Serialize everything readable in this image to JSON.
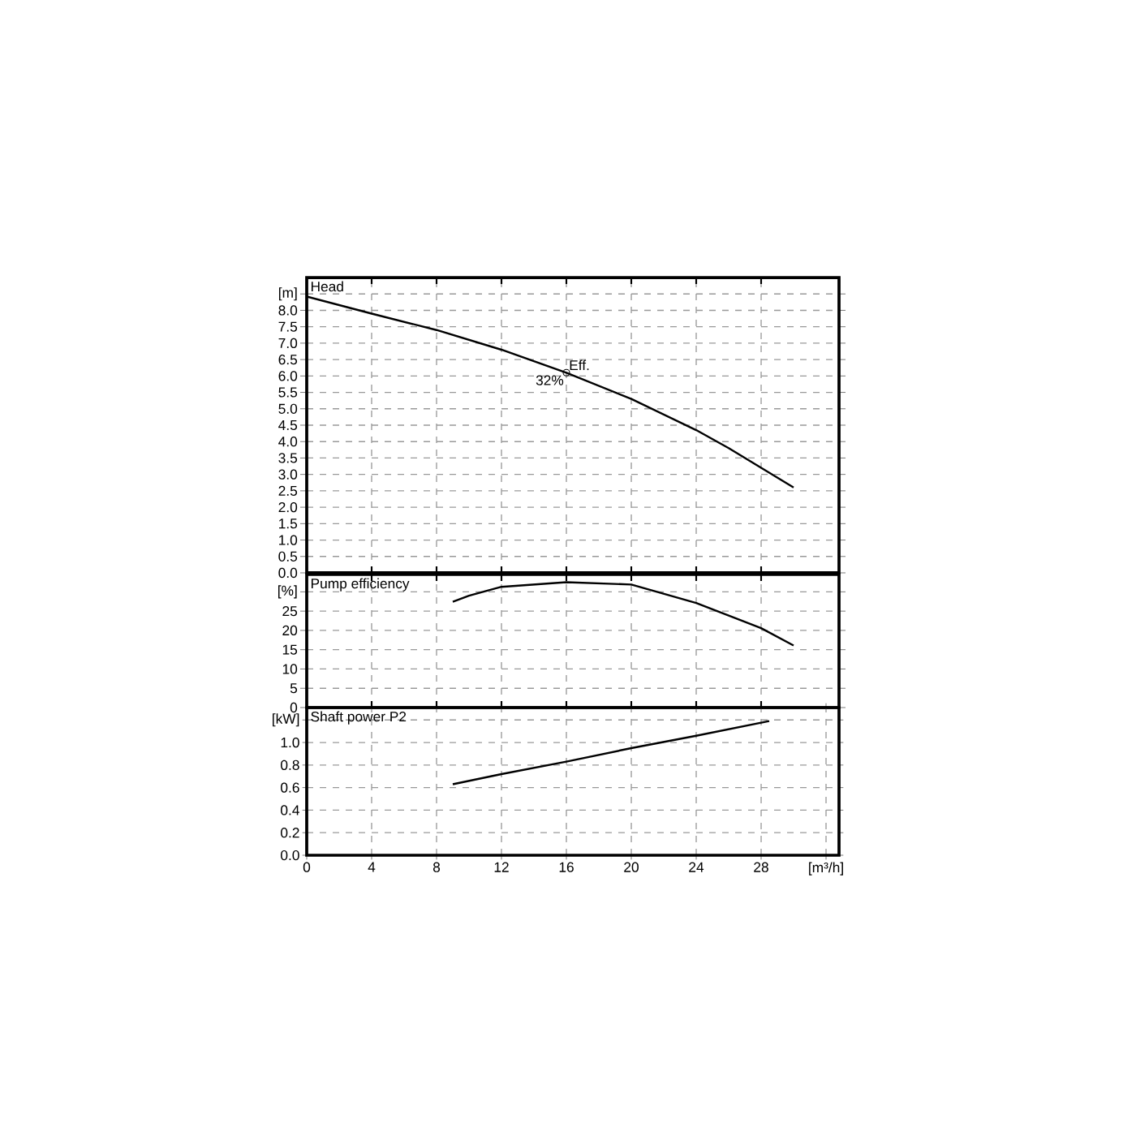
{
  "chart_data": [
    {
      "type": "line",
      "title": "Head",
      "xlim": [
        0,
        32.8
      ],
      "ylim": [
        0,
        9.0
      ],
      "grid": true,
      "tick_labels": "y",
      "xticks": [
        0,
        4,
        8,
        12,
        16,
        20,
        24,
        28
      ],
      "yticks": [
        {
          "value": 0,
          "label": "0.0"
        },
        {
          "value": 0.5,
          "label": "0.5"
        },
        {
          "value": 1,
          "label": "1.0"
        },
        {
          "value": 1.5,
          "label": "1.5"
        },
        {
          "value": 2,
          "label": "2.0"
        },
        {
          "value": 2.5,
          "label": "2.5"
        },
        {
          "value": 3,
          "label": "3.0"
        },
        {
          "value": 3.5,
          "label": "3.5"
        },
        {
          "value": 4,
          "label": "4.0"
        },
        {
          "value": 4.5,
          "label": "4.5"
        },
        {
          "value": 5,
          "label": "5.0"
        },
        {
          "value": 5.5,
          "label": "5.5"
        },
        {
          "value": 6,
          "label": "6.0"
        },
        {
          "value": 6.5,
          "label": "6.5"
        },
        {
          "value": 7,
          "label": "7.0"
        },
        {
          "value": 7.5,
          "label": "7.5"
        },
        {
          "value": 8,
          "label": "8.0"
        },
        {
          "value": 8.5,
          "label": "[m]"
        }
      ],
      "series": [
        {
          "color": "#000000",
          "x": [
            0,
            4,
            8,
            12,
            16,
            20,
            24,
            26,
            28,
            30
          ],
          "values": [
            8.42,
            7.9,
            7.4,
            6.8,
            6.1,
            5.3,
            4.35,
            3.8,
            3.2,
            2.6
          ]
        },
        {
          "type": "scatter",
          "marker": "circle",
          "color": "#000000",
          "x": [
            16
          ],
          "values": [
            6.1
          ]
        }
      ],
      "annotations": [
        {
          "text": "Eff.",
          "x": 16,
          "y": 6.1
        },
        {
          "text": "32%",
          "x": 16,
          "y": 6.1
        }
      ]
    },
    {
      "type": "line",
      "title": "Pump efficiency",
      "xlim": [
        0,
        32.8
      ],
      "ylim": [
        0,
        34.5
      ],
      "grid": true,
      "tick_labels": "y",
      "xticks": [
        0,
        4,
        8,
        12,
        16,
        20,
        24,
        28
      ],
      "yticks": [
        0,
        5,
        10,
        15,
        20,
        25,
        {
          "value": 30,
          "label": "[%]"
        }
      ],
      "series": [
        {
          "color": "#000000",
          "x": [
            9,
            10,
            12,
            16,
            20,
            24,
            28,
            30
          ],
          "values": [
            27.4,
            29,
            31.3,
            32.5,
            31.9,
            27.1,
            20.6,
            16.1
          ]
        }
      ]
    },
    {
      "type": "line",
      "title": "Shaft power P2",
      "xlim": [
        0,
        32.8
      ],
      "ylim": [
        0,
        1.31
      ],
      "grid": true,
      "xticks": [
        0,
        4,
        8,
        12,
        16,
        20,
        24,
        28,
        {
          "value": 32,
          "label": "[m³/h]"
        }
      ],
      "yticks": [
        {
          "value": 0,
          "label": "0.0"
        },
        {
          "value": 0.2,
          "label": "0.2"
        },
        {
          "value": 0.4,
          "label": "0.4"
        },
        {
          "value": 0.6,
          "label": "0.6"
        },
        {
          "value": 0.8,
          "label": "0.8"
        },
        {
          "value": 1.0,
          "label": "1.0"
        },
        {
          "value": 1.2,
          "label": "[kW]"
        }
      ],
      "series": [
        {
          "color": "#000000",
          "x": [
            9,
            12,
            16,
            20,
            24,
            28.5
          ],
          "values": [
            0.63,
            0.72,
            0.83,
            0.95,
            1.06,
            1.19
          ]
        }
      ]
    }
  ]
}
